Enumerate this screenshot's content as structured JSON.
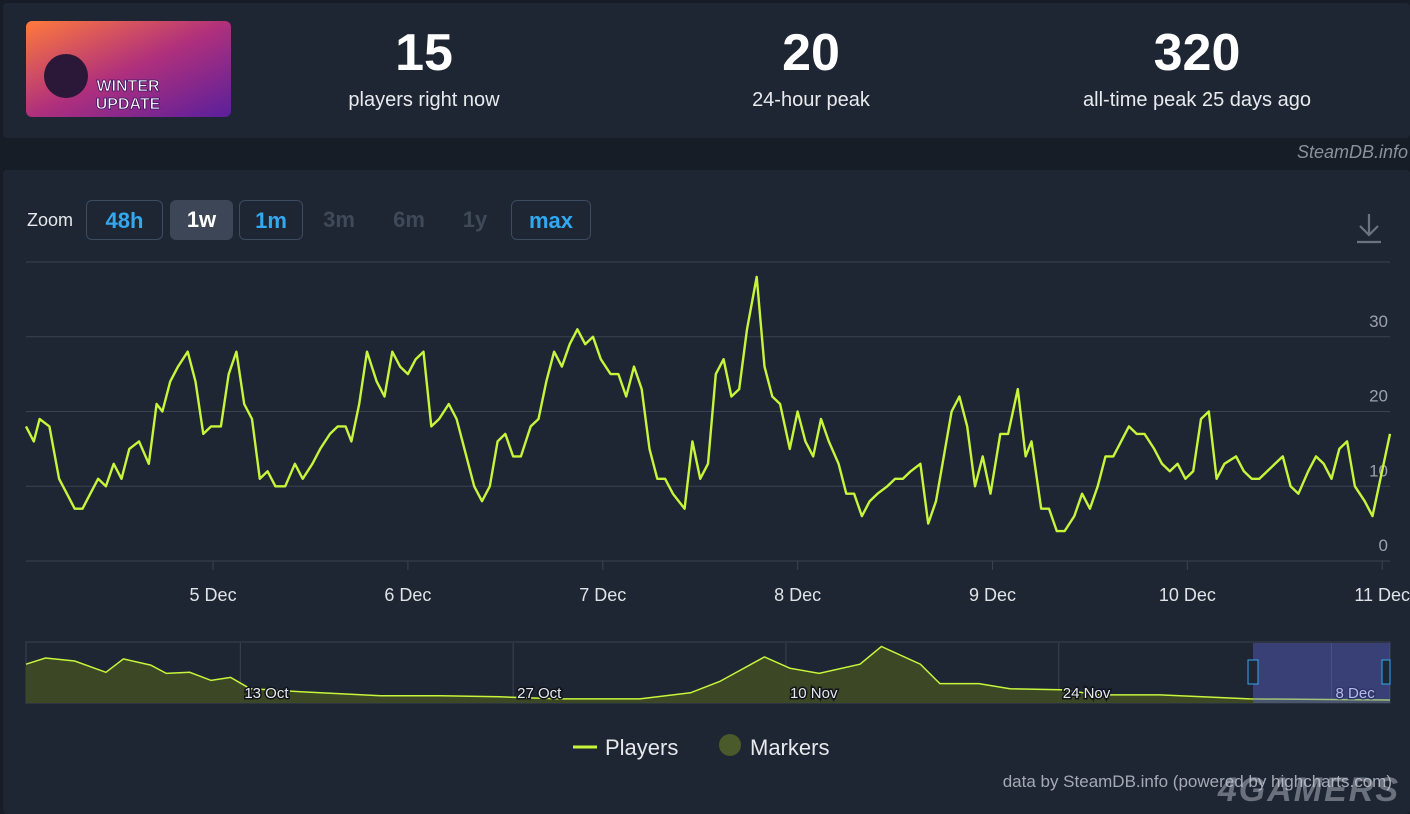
{
  "header": {
    "thumbnail": {
      "line1": "WINTER",
      "line2": "UPDATE"
    },
    "stats": [
      {
        "value": "15",
        "label": "players right now"
      },
      {
        "value": "20",
        "label": "24-hour peak"
      },
      {
        "value": "320",
        "label": "all-time peak 25 days ago"
      }
    ]
  },
  "watermark": "SteamDB.info",
  "zoom": {
    "label": "Zoom",
    "buttons": [
      "48h",
      "1w",
      "1m",
      "3m",
      "6m",
      "1y",
      "max"
    ]
  },
  "chart_data": [
    {
      "type": "line",
      "x": [
        4.04,
        4.08,
        4.11,
        4.16,
        4.21,
        4.25,
        4.29,
        4.33,
        4.37,
        4.41,
        4.45,
        4.49,
        4.53,
        4.57,
        4.62,
        4.67,
        4.71,
        4.74,
        4.78,
        4.82,
        4.87,
        4.91,
        4.95,
        4.99,
        5.04,
        5.08,
        5.12,
        5.16,
        5.2,
        5.24,
        5.28,
        5.32,
        5.37,
        5.42,
        5.46,
        5.51,
        5.55,
        5.6,
        5.64,
        5.68,
        5.71,
        5.75,
        5.79,
        5.84,
        5.88,
        5.92,
        5.96,
        6.0,
        6.04,
        6.08,
        6.12,
        6.16,
        6.21,
        6.25,
        6.3,
        6.34,
        6.38,
        6.42,
        6.46,
        6.5,
        6.54,
        6.58,
        6.63,
        6.67,
        6.71,
        6.75,
        6.79,
        6.83,
        6.87,
        6.91,
        6.95,
        6.99,
        7.04,
        7.08,
        7.12,
        7.16,
        7.2,
        7.24,
        7.28,
        7.32,
        7.36,
        7.42,
        7.46,
        7.5,
        7.54,
        7.58,
        7.62,
        7.66,
        7.7,
        7.74,
        7.79,
        7.83,
        7.87,
        7.91,
        7.96,
        8.0,
        8.04,
        8.08,
        8.12,
        8.16,
        8.21,
        8.25,
        8.29,
        8.33,
        8.37,
        8.41,
        8.46,
        8.5,
        8.54,
        8.58,
        8.63,
        8.67,
        8.71,
        8.75,
        8.79,
        8.83,
        8.87,
        8.91,
        8.95,
        8.99,
        9.04,
        9.08,
        9.13,
        9.17,
        9.2,
        9.25,
        9.29,
        9.33,
        9.37,
        9.42,
        9.46,
        9.5,
        9.54,
        9.58,
        9.62,
        9.66,
        9.7,
        9.74,
        9.78,
        9.83,
        9.87,
        9.91,
        9.95,
        9.99,
        10.03,
        10.07,
        10.11,
        10.15,
        10.19,
        10.25,
        10.29,
        10.33,
        10.37,
        10.41,
        10.45,
        10.49,
        10.53,
        10.57,
        10.62,
        10.66,
        10.7,
        10.74,
        10.78,
        10.82,
        10.86,
        10.91,
        10.95,
        11.04
      ],
      "series": [
        {
          "name": "Players",
          "color": "#c6f53b",
          "values": [
            18,
            16,
            19,
            18,
            11,
            9,
            7,
            7,
            9,
            11,
            10,
            13,
            11,
            15,
            16,
            13,
            21,
            20,
            24,
            26,
            28,
            24,
            17,
            18,
            18,
            25,
            28,
            21,
            19,
            11,
            12,
            10,
            10,
            13,
            11,
            13,
            15,
            17,
            18,
            18,
            16,
            21,
            28,
            24,
            22,
            28,
            26,
            25,
            27,
            28,
            18,
            19,
            21,
            19,
            14,
            10,
            8,
            10,
            16,
            17,
            14,
            14,
            18,
            19,
            24,
            28,
            26,
            29,
            31,
            29,
            30,
            27,
            25,
            25,
            22,
            26,
            23,
            15,
            11,
            11,
            9,
            7,
            16,
            11,
            13,
            25,
            27,
            22,
            23,
            31,
            38,
            26,
            22,
            21,
            15,
            20,
            16,
            14,
            19,
            16,
            13,
            9,
            9,
            6,
            8,
            9,
            10,
            11,
            11,
            12,
            13,
            5,
            8,
            14,
            20,
            22,
            18,
            10,
            14,
            9,
            17,
            17,
            23,
            14,
            16,
            7,
            7,
            4,
            4,
            6,
            9,
            7,
            10,
            14,
            14,
            16,
            18,
            17,
            17,
            15,
            13,
            12,
            13,
            11,
            12,
            19,
            20,
            11,
            13,
            14,
            12,
            11,
            11,
            12,
            13,
            14,
            10,
            9,
            12,
            14,
            13,
            11,
            15,
            16,
            10,
            8,
            6,
            17
          ]
        }
      ],
      "markers": {
        "name": "Markers",
        "color": "#4b5a2b"
      },
      "xlim": [
        4.04,
        11.04
      ],
      "xticks": [
        {
          "value": 5,
          "label": "5 Dec"
        },
        {
          "value": 6,
          "label": "6 Dec"
        },
        {
          "value": 7,
          "label": "7 Dec"
        },
        {
          "value": 8,
          "label": "8 Dec"
        },
        {
          "value": 9,
          "label": "9 Dec"
        },
        {
          "value": 10,
          "label": "10 Dec"
        },
        {
          "value": 11,
          "label": "11 Dec"
        }
      ],
      "ylim": [
        0,
        40
      ],
      "yticks": [
        0,
        10,
        20,
        30
      ],
      "grid": true
    },
    {
      "type": "area",
      "x": [
        2.0,
        3.0,
        4.5,
        6.1,
        7.0,
        8.4,
        9.2,
        10.4,
        11.5,
        12.5,
        13.5,
        16.1,
        20.2,
        23.3,
        26.3,
        29.4,
        33.5,
        36.1,
        37.6,
        39.9,
        41.2,
        42.7,
        44.8,
        45.9,
        47.9,
        48.9,
        50.9,
        52.5,
        55.1,
        57.1,
        60.2,
        64.8,
        72.0
      ],
      "series": [
        {
          "color": "#c6f53b",
          "values": [
            220,
            255,
            238,
            174,
            250,
            215,
            168,
            174,
            128,
            145,
            81,
            64,
            41,
            41,
            35,
            23,
            23,
            58,
            122,
            261,
            197,
            168,
            220,
            320,
            220,
            110,
            110,
            81,
            75,
            46,
            46,
            23,
            17
          ]
        }
      ],
      "xlim": [
        2,
        72
      ],
      "xticks": [
        {
          "value": 13,
          "label": "13 Oct"
        },
        {
          "value": 27,
          "label": "27 Oct"
        },
        {
          "value": 41,
          "label": "10 Nov"
        },
        {
          "value": 55,
          "label": "24 Nov"
        },
        {
          "value": 69,
          "label": "8 Dec"
        }
      ],
      "ylim": [
        0,
        340
      ]
    }
  ],
  "credit": "data by SteamDB.info (powered by highcharts.com)",
  "brand": "4GAMERS"
}
